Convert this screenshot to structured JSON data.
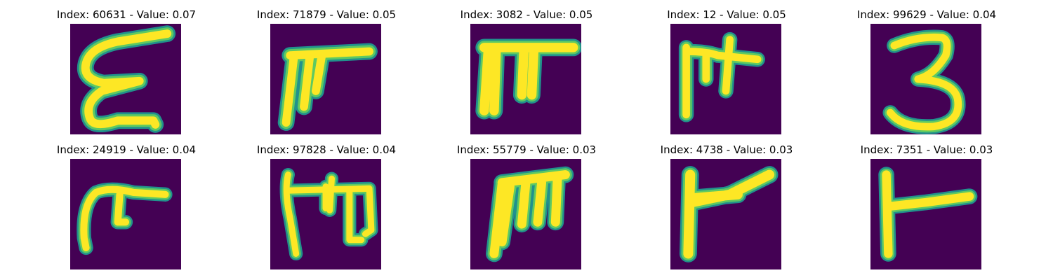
{
  "colors": {
    "background": "#440154",
    "stroke_core": "#fde725",
    "stroke_mid": "#5ec962",
    "stroke_edge": "#21918c"
  },
  "panels": [
    {
      "title": "Index: 60631 - Value: 0.07",
      "index": 60631,
      "value": 0.07
    },
    {
      "title": "Index: 71879 - Value: 0.05",
      "index": 71879,
      "value": 0.05
    },
    {
      "title": "Index: 3082 - Value: 0.05",
      "index": 3082,
      "value": 0.05
    },
    {
      "title": "Index: 12 - Value: 0.05",
      "index": 12,
      "value": 0.05
    },
    {
      "title": "Index: 99629 - Value: 0.04",
      "index": 99629,
      "value": 0.04
    },
    {
      "title": "Index: 24919 - Value: 0.04",
      "index": 24919,
      "value": 0.04
    },
    {
      "title": "Index: 97828 - Value: 0.04",
      "index": 97828,
      "value": 0.04
    },
    {
      "title": "Index: 55779 - Value: 0.03",
      "index": 55779,
      "value": 0.03
    },
    {
      "title": "Index: 4738 - Value: 0.03",
      "index": 4738,
      "value": 0.03
    },
    {
      "title": "Index: 7351 - Value: 0.03",
      "index": 7351,
      "value": 0.03
    }
  ]
}
